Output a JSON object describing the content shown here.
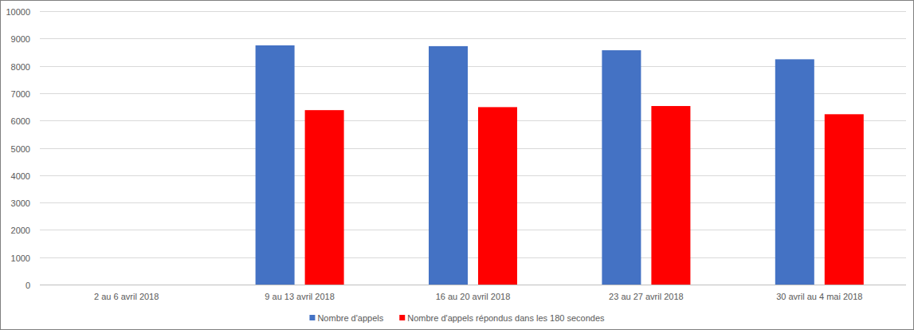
{
  "chart_data": {
    "type": "bar",
    "categories": [
      "2 au 6 avril 2018",
      "9 au 13 avril 2018",
      "16 au 20 avril 2018",
      "23 au 27 avril 2018",
      "30 avril au 4 mai 2018"
    ],
    "series": [
      {
        "name": "Nombre d'appels",
        "color": "#4472c4",
        "values": [
          null,
          8750,
          8720,
          8570,
          8240
        ]
      },
      {
        "name": "Nombre d'appels répondus dans les 180 secondes",
        "color": "#ff0000",
        "values": [
          null,
          6380,
          6490,
          6530,
          6230
        ]
      }
    ],
    "ylim": [
      0,
      10000
    ],
    "yticks": [
      0,
      1000,
      2000,
      3000,
      4000,
      5000,
      6000,
      7000,
      8000,
      9000,
      10000
    ],
    "grid": true,
    "legend": "bottom"
  }
}
